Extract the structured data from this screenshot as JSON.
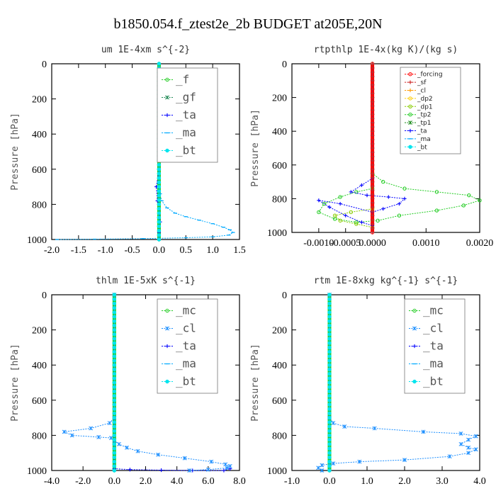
{
  "figure_title": "b1850.054.f_ztest2e_2b  BUDGET at205E,20N",
  "colors": {
    "f": "#22cc22",
    "gf": "#228b57",
    "ta": "#0000ff",
    "ma": "#00aaff",
    "bt": "#00e5ee",
    "mc": "#22cc22",
    "cl": "#1e90ff",
    "forcing": "#ff0000",
    "sf": "#cc2222",
    "dp2": "#ffcc00",
    "dp1": "#88cc00",
    "tp2": "#22cc22",
    "tp1": "#1a8a1a",
    "cl_small": "#ff9900"
  },
  "chart_data": [
    {
      "type": "line",
      "title": "um   1E-4xm s^{-2}",
      "ylabel": "Pressure [hPa]",
      "xlim": [
        -2.0,
        1.5
      ],
      "ylim": [
        1000,
        0
      ],
      "xticks": [
        "-2.0",
        "-1.5",
        "-1.0",
        "-0.5",
        "0.0",
        "0.5",
        "1.0",
        "1.5"
      ],
      "xtick_values": [
        -2.0,
        -1.5,
        -1.0,
        -0.5,
        0.0,
        0.5,
        1.0,
        1.5
      ],
      "yticks": [
        "0",
        "200",
        "400",
        "600",
        "800",
        "1000"
      ],
      "ytick_values": [
        0,
        200,
        400,
        600,
        800,
        1000
      ],
      "legend": [
        "_f",
        "_gf",
        "_ta",
        "_ma",
        "_bt"
      ],
      "series": [
        {
          "name": "_ta",
          "key": "ta",
          "x": [
            0,
            0,
            0,
            -0.05,
            -0.03,
            0,
            0.02,
            0,
            0
          ],
          "y": [
            0,
            200,
            600,
            700,
            780,
            800,
            900,
            960,
            1000
          ]
        },
        {
          "name": "_ma",
          "key": "ma",
          "x": [
            0,
            0,
            0,
            0.02,
            0.05,
            0.15,
            0.3,
            0.5,
            0.75,
            1.0,
            1.2,
            1.32,
            1.38,
            1.3,
            1.0,
            0.5,
            -0.3,
            -1.2,
            -1.9
          ],
          "y": [
            0,
            200,
            600,
            740,
            780,
            820,
            850,
            870,
            890,
            910,
            930,
            945,
            960,
            975,
            985,
            990,
            995,
            998,
            1000
          ]
        },
        {
          "name": "_f",
          "key": "f",
          "x": [
            0,
            0
          ],
          "y": [
            0,
            1000
          ]
        },
        {
          "name": "_bt",
          "key": "bt",
          "x": [
            0,
            0
          ],
          "y": [
            0,
            1000
          ]
        }
      ]
    },
    {
      "type": "line",
      "title": "rtpthlp   1E-4x(kg K)/(kg s)",
      "ylabel": "Pressure [hPa]",
      "xlim": [
        -0.0015,
        0.002
      ],
      "ylim": [
        1000,
        0
      ],
      "xticks": [
        "-0.0010",
        "-0.0005",
        "0.0000",
        "0.0010",
        "0.0020"
      ],
      "xtick_values": [
        -0.001,
        -0.0005,
        0.0,
        0.001,
        0.002
      ],
      "yticks": [
        "0",
        "200",
        "400",
        "600",
        "800",
        "1000"
      ],
      "ytick_values": [
        0,
        200,
        400,
        600,
        800,
        1000
      ],
      "legend": [
        "_forcing",
        "_sf",
        "_cl",
        "_dp2",
        "_dp1",
        "_tp2",
        "_tp1",
        "_ta",
        "_ma",
        "_bt"
      ],
      "series": [
        {
          "name": "_tp2",
          "key": "tp2",
          "x": [
            0,
            0,
            0.0002,
            0.0006,
            0.0012,
            0.0018,
            0.002,
            0.0017,
            0.0012,
            0.0005,
            0.0001,
            -0.0003,
            -0.0007,
            -0.001,
            -0.0009,
            -0.0006,
            -0.0003,
            0
          ],
          "y": [
            0,
            650,
            700,
            740,
            760,
            780,
            810,
            840,
            870,
            900,
            930,
            940,
            920,
            880,
            830,
            790,
            760,
            740
          ]
        },
        {
          "name": "_dp1",
          "key": "dp1",
          "x": [
            0,
            -0.0004,
            -0.0007,
            -0.0006,
            -0.0003,
            0
          ],
          "y": [
            860,
            880,
            900,
            930,
            950,
            970
          ]
        },
        {
          "name": "_ta",
          "key": "ta",
          "x": [
            0,
            0,
            -0.0002,
            -0.0004,
            -0.0001,
            0.0003,
            0.0006,
            0.0005,
            0.0002,
            0,
            -0.0006,
            -0.001,
            -0.0008,
            -0.0005,
            -0.0002,
            0
          ],
          "y": [
            0,
            680,
            720,
            760,
            780,
            790,
            800,
            830,
            860,
            880,
            830,
            810,
            850,
            900,
            940,
            960
          ]
        },
        {
          "name": "_ma",
          "key": "ma",
          "x": [
            0,
            0
          ],
          "y": [
            0,
            1000
          ]
        },
        {
          "name": "_forcing",
          "key": "forcing",
          "x": [
            0,
            0
          ],
          "y": [
            0,
            1000
          ]
        },
        {
          "name": "_sf",
          "key": "sf",
          "x": [
            0,
            0
          ],
          "y": [
            0,
            1000
          ]
        }
      ]
    },
    {
      "type": "line",
      "title": "thlm   1E-5xK s^{-1}",
      "ylabel": "Pressure [hPa]",
      "xlim": [
        -4.0,
        8.0
      ],
      "ylim": [
        1000,
        0
      ],
      "xticks": [
        "-4.0",
        "-2.0",
        "0.0",
        "2.0",
        "4.0",
        "6.0",
        "8.0"
      ],
      "xtick_values": [
        -4.0,
        -2.0,
        0.0,
        2.0,
        4.0,
        6.0,
        8.0
      ],
      "yticks": [
        "0",
        "200",
        "400",
        "600",
        "800",
        "1000"
      ],
      "ytick_values": [
        0,
        200,
        400,
        600,
        800,
        1000
      ],
      "legend": [
        "_mc",
        "_cl",
        "_ta",
        "_ma",
        "_bt"
      ],
      "series": [
        {
          "name": "_ta",
          "key": "ta",
          "x": [
            0,
            0,
            1.0,
            3.0,
            5.0,
            7.0,
            7.4
          ],
          "y": [
            0,
            990,
            995,
            998,
            1000,
            1000,
            990
          ]
        },
        {
          "name": "_cl",
          "key": "cl",
          "x": [
            0,
            0,
            -0.3,
            -1.5,
            -3.2,
            -2.7,
            -1.0,
            -0.2,
            0,
            0.3,
            0.8,
            1.5,
            2.8,
            4.5,
            6.2,
            7.1,
            7.4,
            7.2,
            6.0,
            4.8
          ],
          "y": [
            0,
            700,
            730,
            760,
            780,
            800,
            810,
            815,
            830,
            850,
            870,
            890,
            910,
            930,
            950,
            965,
            975,
            985,
            995,
            1000
          ]
        },
        {
          "name": "_mc",
          "key": "mc",
          "x": [
            0,
            0
          ],
          "y": [
            0,
            1000
          ]
        },
        {
          "name": "_bt",
          "key": "bt",
          "x": [
            0,
            0
          ],
          "y": [
            0,
            1000
          ]
        }
      ]
    },
    {
      "type": "line",
      "title": "rtm   1E-8xkg kg^{-1} s^{-1}",
      "ylabel": "Pressure [hPa]",
      "xlim": [
        -1.0,
        4.0
      ],
      "ylim": [
        1000,
        0
      ],
      "xticks": [
        "-1.0",
        "0.0",
        "1.0",
        "2.0",
        "3.0",
        "4.0"
      ],
      "xtick_values": [
        -1.0,
        0.0,
        1.0,
        2.0,
        3.0,
        4.0
      ],
      "yticks": [
        "0",
        "200",
        "400",
        "600",
        "800",
        "1000"
      ],
      "ytick_values": [
        0,
        200,
        400,
        600,
        800,
        1000
      ],
      "legend": [
        "_mc",
        "_cl",
        "_ta",
        "_ma",
        "_bt"
      ],
      "series": [
        {
          "name": "_cl",
          "key": "cl",
          "x": [
            0,
            0,
            0.1,
            0.4,
            1.2,
            2.5,
            3.5,
            3.9,
            3.7,
            3.5,
            3.7,
            3.9,
            3.7,
            3.2,
            2.0,
            0.8,
            0.1,
            -0.2,
            -0.3,
            -0.2
          ],
          "y": [
            0,
            700,
            730,
            750,
            760,
            780,
            790,
            805,
            825,
            850,
            870,
            880,
            900,
            920,
            940,
            950,
            960,
            970,
            985,
            1000
          ]
        },
        {
          "name": "_mc",
          "key": "mc",
          "x": [
            0,
            0
          ],
          "y": [
            0,
            1000
          ]
        },
        {
          "name": "_bt",
          "key": "bt",
          "x": [
            0,
            0
          ],
          "y": [
            0,
            1000
          ]
        }
      ]
    }
  ]
}
